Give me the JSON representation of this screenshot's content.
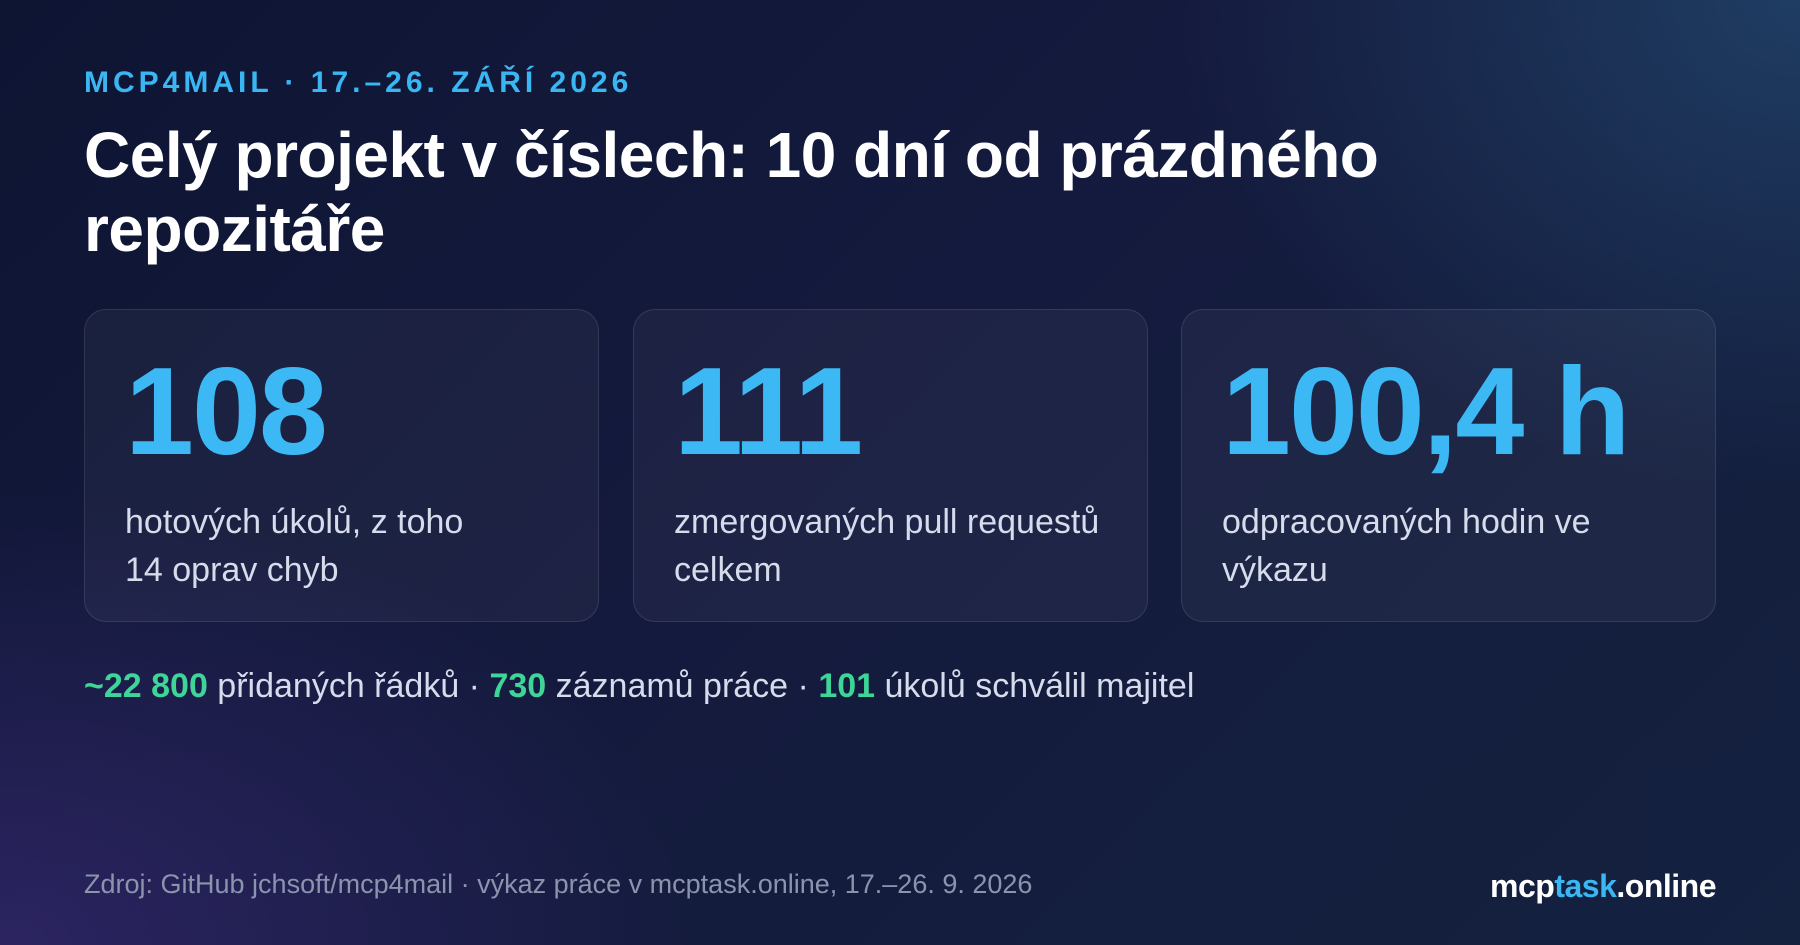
{
  "eyebrow": "MCP4MAIL · 17.–26. ZÁŘÍ 2026",
  "headline": "Celý projekt v číslech: 10 dní od prázdného repozitáře",
  "stats": [
    {
      "value": "108",
      "label": "hotových úkolů, z toho\n14 oprav chyb"
    },
    {
      "value": "111",
      "label": "zmergovaných pull requestů\ncelkem"
    },
    {
      "value": "100,4 h",
      "label": "odpracovaných hodin ve\nvýkazu"
    }
  ],
  "summary": [
    {
      "number": "~22 800",
      "text": " přidaných řádků · "
    },
    {
      "number": "730",
      "text": " záznamů práce · "
    },
    {
      "number": "101",
      "text": " úkolů schválil majitel"
    }
  ],
  "source": "Zdroj: GitHub jchsoft/mcp4mail · výkaz práce v mcptask.online, 17.–26. 9. 2026",
  "brand": {
    "part1": "mcp",
    "part2": "task",
    "part3": ".online"
  },
  "colors": {
    "accent_blue": "#3cb8f4",
    "accent_green": "#3dd598",
    "background": "#111633"
  }
}
